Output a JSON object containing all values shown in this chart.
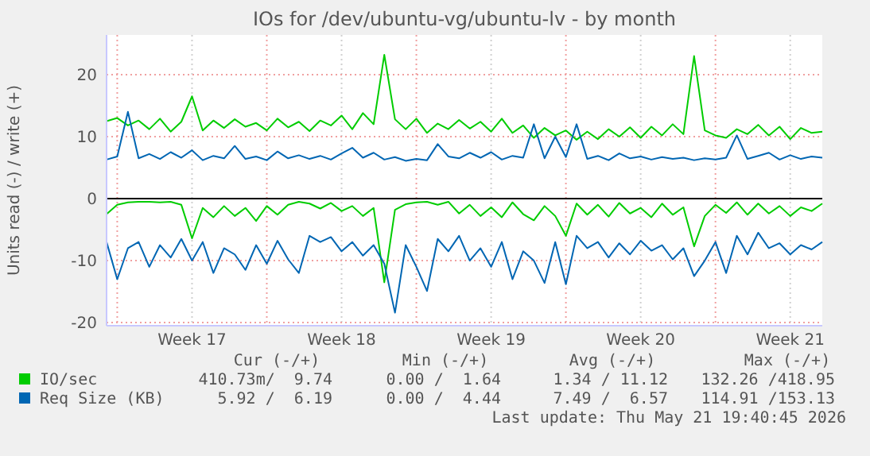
{
  "chart_data": {
    "type": "line",
    "title": "IOs for /dev/ubuntu-vg/ubuntu-lv - by month",
    "ylabel": "Units read (-) / write (+)",
    "categories": [
      null,
      null,
      null,
      null,
      null,
      null,
      null,
      null,
      "Week 17",
      null,
      null,
      null,
      null,
      null,
      null,
      null,
      null,
      null,
      null,
      null,
      null,
      null,
      "Week 18",
      null,
      null,
      null,
      null,
      null,
      null,
      null,
      null,
      null,
      null,
      null,
      null,
      null,
      "Week 19",
      null,
      null,
      null,
      null,
      null,
      null,
      null,
      null,
      null,
      null,
      null,
      null,
      null,
      "Week 20",
      null,
      null,
      null,
      null,
      null,
      null,
      null,
      null,
      null,
      null,
      null,
      null,
      null,
      "Week 21",
      null,
      null,
      null
    ],
    "ylim": [
      -20.5,
      26.4
    ],
    "yticks": [
      -20,
      -10,
      0,
      10,
      20
    ],
    "grid": true,
    "legend": "bottom",
    "series": [
      {
        "name": "IO/sec",
        "color": "#00cc00",
        "values": [
          12.5,
          13,
          11.8,
          12.6,
          11.2,
          12.9,
          10.8,
          12.4,
          16.5,
          11,
          12.6,
          11.4,
          12.8,
          11.6,
          12.2,
          11,
          12.9,
          11.5,
          12.4,
          10.9,
          12.6,
          11.8,
          13.4,
          11.2,
          13.8,
          12,
          23.2,
          12.8,
          11.2,
          12.9,
          10.6,
          12.1,
          11.2,
          12.7,
          11.3,
          12.4,
          10.8,
          12.9,
          10.6,
          11.8,
          9.8,
          11.4,
          10.2,
          11,
          9.5,
          10.8,
          9.6,
          11.2,
          10,
          11.5,
          9.8,
          11.6,
          10.2,
          12,
          10.4,
          23,
          11,
          10.2,
          9.8,
          11.2,
          10.4,
          11.9,
          10.2,
          11.6,
          9.6,
          11.4,
          10.6,
          10.8
        ]
      },
      {
        "color": "#00cc00",
        "values": [
          -2.5,
          -1,
          -0.6,
          -0.5,
          -0.5,
          -0.6,
          -0.5,
          -1,
          -6.4,
          -1.5,
          -3,
          -1.2,
          -2.8,
          -1.5,
          -3.6,
          -1.2,
          -2.6,
          -1,
          -0.5,
          -0.8,
          -1.6,
          -0.7,
          -2,
          -1.2,
          -2.8,
          -1.5,
          -13.5,
          -1.8,
          -0.9,
          -0.6,
          -0.5,
          -1,
          -0.5,
          -2.4,
          -1,
          -2.8,
          -1.4,
          -3,
          -0.6,
          -2.5,
          -3.5,
          -1.2,
          -2.8,
          -6,
          -0.8,
          -2.6,
          -1,
          -2.9,
          -0.7,
          -2.4,
          -1.5,
          -3,
          -0.8,
          -2.6,
          -1.4,
          -7.7,
          -2.8,
          -1,
          -2.3,
          -0.6,
          -2.6,
          -0.8,
          -2.4,
          -1.2,
          -2.8,
          -1.4,
          -2,
          -0.8
        ]
      },
      {
        "name": "Req Size (KB)",
        "color": "#0066b3",
        "values": [
          6.3,
          6.8,
          14,
          6.5,
          7.2,
          6.4,
          7.5,
          6.6,
          7.8,
          6.2,
          6.9,
          6.5,
          8.5,
          6.4,
          6.8,
          6.2,
          7.6,
          6.5,
          7,
          6.4,
          6.9,
          6.3,
          7.3,
          8.2,
          6.6,
          7.4,
          6.3,
          6.7,
          6.1,
          6.4,
          6.2,
          8.8,
          6.8,
          6.5,
          7.4,
          6.6,
          7.5,
          6.3,
          6.9,
          6.6,
          12,
          6.5,
          10,
          6.7,
          12,
          6.4,
          6.9,
          6.2,
          7.3,
          6.5,
          6.8,
          6.3,
          6.7,
          6.4,
          6.6,
          6.2,
          6.5,
          6.3,
          6.6,
          10.2,
          6.4,
          6.9,
          7.4,
          6.3,
          7,
          6.4,
          6.8,
          6.6
        ]
      },
      {
        "color": "#0066b3",
        "values": [
          -7,
          -13,
          -8,
          -7,
          -11,
          -7.5,
          -9.5,
          -6.5,
          -10,
          -7,
          -12,
          -8,
          -9,
          -11.5,
          -7.5,
          -10.5,
          -6.8,
          -9.8,
          -12,
          -6,
          -7,
          -6.2,
          -8.5,
          -7,
          -9.2,
          -7.5,
          -10.5,
          -18.4,
          -7.5,
          -11,
          -14.9,
          -6.5,
          -8.5,
          -6,
          -10,
          -8,
          -11,
          -7,
          -13,
          -8.5,
          -10,
          -13.6,
          -7,
          -13.8,
          -6,
          -8,
          -7,
          -9.5,
          -7.2,
          -9,
          -6.8,
          -8.4,
          -7.5,
          -9.8,
          -8,
          -12.5,
          -10,
          -7,
          -12,
          -6,
          -9,
          -5.5,
          -8,
          -7.2,
          -9,
          -7.5,
          -8.2,
          -7
        ]
      }
    ],
    "annotations": [
      "Cur (-/+)",
      "Min (-/+)",
      "Avg (-/+)",
      "Max (-/+)",
      "410.73m/  9.74",
      "0.00 /  1.64",
      "1.34 / 11.12",
      "132.26 /418.95",
      "5.92 /  6.19",
      "0.00 /  4.44",
      "7.49 /  6.57",
      "114.91 /153.13",
      "Last update: Thu May 21 19:40:45 2026"
    ]
  }
}
